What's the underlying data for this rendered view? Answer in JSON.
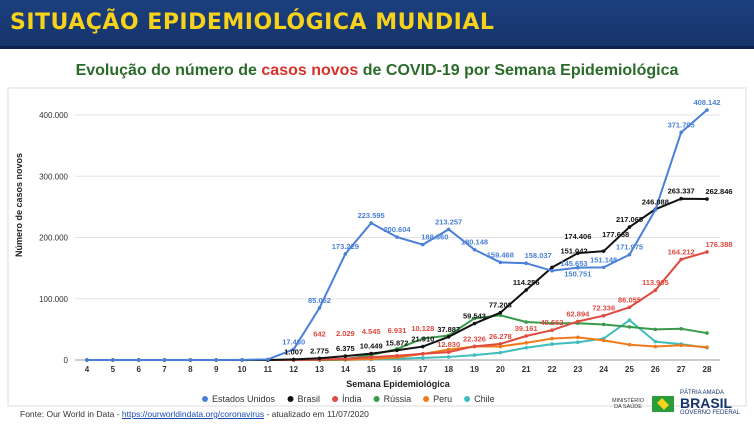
{
  "header": {
    "title": "SITUAÇÃO EPIDEMIOLÓGICA MUNDIAL"
  },
  "subtitle": {
    "part1": "Evolução do número de ",
    "highlight": "casos novos",
    "part2": " de COVID-19 por Semana Epidemiológica"
  },
  "footer": {
    "prefix": "Fonte: Our World in Data - ",
    "link": "https://ourworldindata.org/coronavirus",
    "suffix": " - atualizado em 11/07/2020"
  },
  "logo": {
    "ministry": "MINISTÉRIO DA SAÚDE",
    "brand_top": "PÁTRIA AMADA",
    "brand": "BRASIL",
    "brand_sub": "GOVERNO FEDERAL"
  },
  "chart_data": {
    "type": "line",
    "title": "Evolução do número de casos novos de COVID-19 por Semana Epidemiológica",
    "xlabel": "Semana Epidemiológica",
    "ylabel": "Número de casos novos",
    "ylim": [
      0,
      400000
    ],
    "yticks": [
      "0",
      "100.000",
      "200.000",
      "300.000",
      "400.000"
    ],
    "grid": true,
    "legend": "bottom",
    "x": [
      4,
      5,
      6,
      7,
      8,
      9,
      10,
      11,
      12,
      13,
      14,
      15,
      16,
      17,
      18,
      19,
      20,
      21,
      22,
      23,
      24,
      25,
      26,
      27,
      28
    ],
    "series": [
      {
        "name": "Estados Unidos",
        "color": "#4a80d8",
        "values": [
          0,
          0,
          0,
          0,
          0,
          0,
          200,
          1000,
          17450,
          85062,
          173229,
          223595,
          200604,
          188360,
          213257,
          180148,
          159468,
          158037,
          145653,
          150751,
          151148,
          171975,
          245000,
          371705,
          408142
        ],
        "labels": [
          null,
          null,
          null,
          null,
          null,
          null,
          null,
          null,
          "17.450",
          "85.062",
          "173.229",
          "223.595",
          "200.604",
          "188.360",
          "213.257",
          "180.148",
          "159.468",
          "158.037",
          "145.653",
          "150.751",
          "151.148",
          "171.975",
          null,
          "371.705",
          "408.142"
        ]
      },
      {
        "name": "Brasil",
        "color": "#111111",
        "values": [
          0,
          0,
          0,
          0,
          0,
          0,
          0,
          0,
          1007,
          2775,
          6375,
          10449,
          15872,
          21910,
          37887,
          59543,
          77203,
          114256,
          151042,
          174406,
          177668,
          217065,
          246088,
          263337,
          262846
        ],
        "labels": [
          null,
          null,
          null,
          null,
          null,
          null,
          null,
          null,
          "1.007",
          "2.775",
          "6.375",
          "10.449",
          "15.872",
          "21.910",
          "37.887",
          "59.543",
          "77.203",
          "114.256",
          "151.042",
          "174.406",
          "177.668",
          "217.065",
          "246.088",
          "263.337",
          "262.846"
        ]
      },
      {
        "name": "Índia",
        "color": "#df4b40",
        "values": [
          0,
          0,
          0,
          0,
          0,
          0,
          0,
          0,
          0,
          642,
          2029,
          4545,
          6931,
          10128,
          12830,
          22326,
          26278,
          39161,
          48662,
          62894,
          72336,
          86055,
          113905,
          164212,
          176388
        ],
        "labels": [
          null,
          null,
          null,
          null,
          null,
          null,
          null,
          null,
          null,
          "642",
          "2.029",
          "4.545",
          "6.931",
          "10.128",
          "12.830",
          "22.326",
          "26.278",
          "39.161",
          "48.662",
          "62.894",
          "72.336",
          "86.055",
          "113.905",
          "164.212",
          "176.388"
        ]
      },
      {
        "name": "Rússia",
        "color": "#3a9a4a",
        "values": [
          0,
          0,
          0,
          0,
          0,
          0,
          0,
          0,
          0,
          200,
          1500,
          8000,
          18000,
          35000,
          40000,
          68000,
          73000,
          62000,
          60000,
          60000,
          58000,
          54000,
          50000,
          51000,
          44000
        ]
      },
      {
        "name": "Peru",
        "color": "#f07a1a",
        "values": [
          0,
          0,
          0,
          0,
          0,
          0,
          0,
          0,
          0,
          0,
          500,
          1500,
          4000,
          10000,
          17000,
          22000,
          22000,
          28000,
          35000,
          37000,
          32000,
          25000,
          22000,
          24000,
          21000
        ]
      },
      {
        "name": "Chile",
        "color": "#3fbdbd",
        "values": [
          0,
          0,
          0,
          0,
          0,
          0,
          0,
          0,
          0,
          0,
          300,
          800,
          2000,
          3500,
          5000,
          8000,
          12000,
          20000,
          26000,
          29000,
          35000,
          65000,
          30000,
          26000,
          20000
        ]
      }
    ]
  }
}
